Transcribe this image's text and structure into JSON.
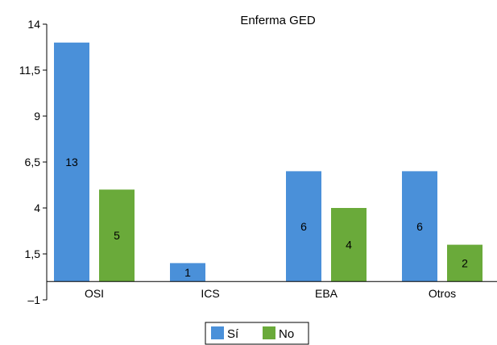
{
  "chart_data": {
    "type": "bar",
    "title": "Enferma GED",
    "categories": [
      "OSI",
      "ICS",
      "EBA",
      "Otros"
    ],
    "series": [
      {
        "name": "Sí",
        "color": "#4a90d9",
        "values": [
          13,
          1,
          6,
          6
        ]
      },
      {
        "name": "No",
        "color": "#6aaa3a",
        "values": [
          5,
          null,
          4,
          2
        ]
      }
    ],
    "yticks": [
      -1,
      1.5,
      4,
      6.5,
      9,
      11.5,
      14
    ],
    "ytick_labels": [
      "–1",
      "1,5",
      "4",
      "6,5",
      "9",
      "11,5",
      "14"
    ],
    "ylim": [
      -1,
      14
    ],
    "baseline": 0,
    "data_labels": true,
    "legend_position": "bottom-center",
    "grid": false
  }
}
